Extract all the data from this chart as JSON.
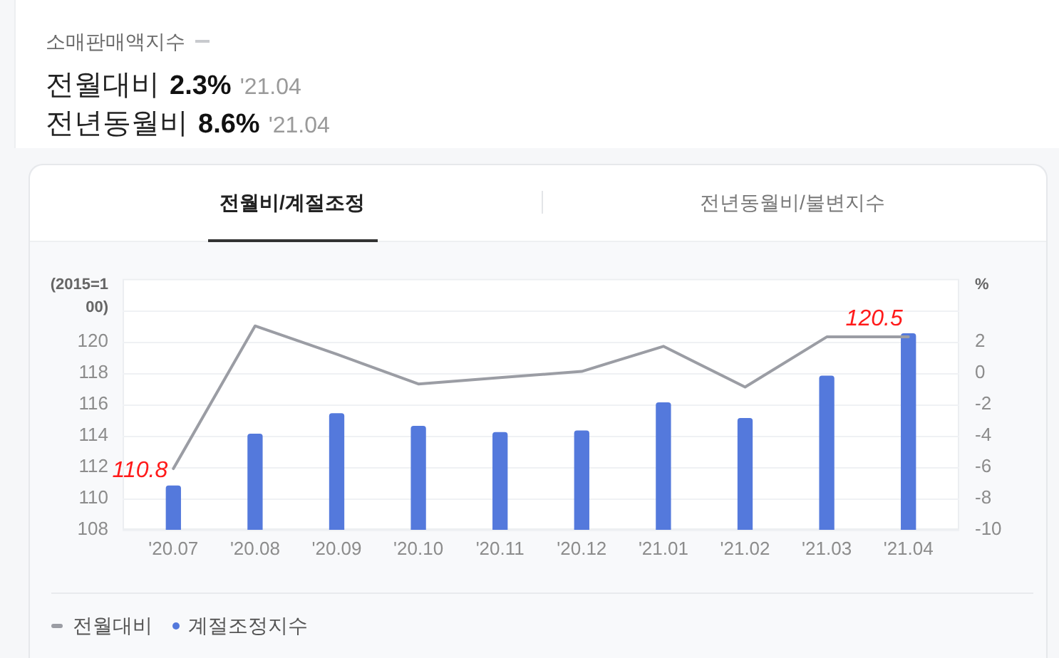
{
  "chart_data": {
    "type": "bar",
    "title": "소매판매액지수",
    "annotations": [
      "전월대비 2.3% '21.04",
      "전년동월비 8.6% '21.04",
      "전월비/계절조정",
      "전년동월비/불변지수",
      {
        "text": "110.8",
        "x": "'20.07",
        "y": 110.8
      },
      {
        "text": "120.5",
        "x": "'21.04",
        "y": 120.5
      }
    ],
    "ylabel": "(2015=100)",
    "y2label": "%",
    "categories": [
      "'20.07",
      "'20.08",
      "'20.09",
      "'20.10",
      "'20.11",
      "'20.12",
      "'21.01",
      "'21.02",
      "'21.03",
      "'21.04"
    ],
    "series": [
      {
        "name": "전월대비",
        "type": "line",
        "axis": "y2",
        "color": "#9b9da4",
        "values": [
          -6.1,
          3.0,
          1.2,
          -0.7,
          -0.3,
          0.1,
          1.7,
          -0.9,
          2.3,
          2.3
        ]
      },
      {
        "name": "계절조정지수",
        "color": "#5479dc",
        "values": [
          110.8,
          114.1,
          115.4,
          114.6,
          114.2,
          114.3,
          116.1,
          115.1,
          117.8,
          120.5
        ]
      }
    ],
    "ylim": [
      108,
      124
    ],
    "yticks": [
      108,
      110,
      112,
      114,
      116,
      118,
      120,
      {
        "value": 122,
        "label": null
      }
    ],
    "y2lim": [
      -10,
      6
    ],
    "y2ticks": [
      -10,
      -8,
      -6,
      -4,
      -2,
      0,
      2
    ],
    "grid": "y",
    "legend": "bottom left"
  }
}
